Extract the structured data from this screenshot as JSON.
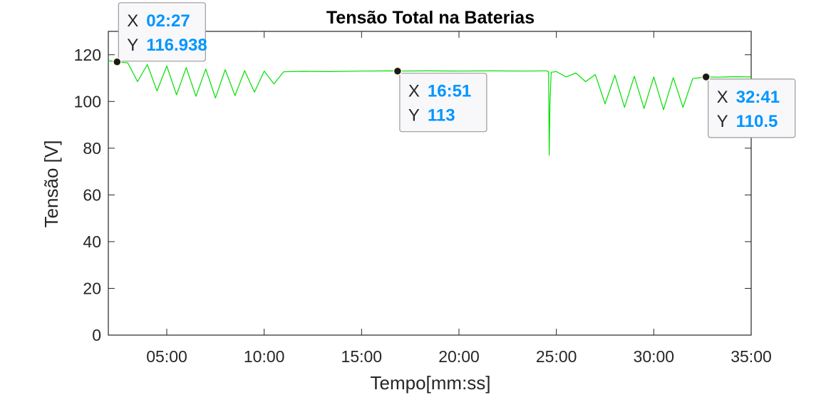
{
  "chart_data": {
    "type": "line",
    "title": "Tensão Total na Baterias",
    "xlabel": "Tempo[mm:ss]",
    "ylabel": "Tensão [V]",
    "xlim_seconds": [
      120,
      2100
    ],
    "ylim": [
      0,
      130
    ],
    "x_ticks": [
      "05:00",
      "10:00",
      "15:00",
      "20:00",
      "25:00",
      "30:00",
      "35:00"
    ],
    "y_ticks": [
      "0",
      "20",
      "40",
      "60",
      "80",
      "100",
      "120"
    ],
    "grid": false,
    "colors": {
      "line": "#00e000",
      "axes": "#262626",
      "tip_value": "#0096ff"
    },
    "series": [
      {
        "x": [
          120,
          147,
          180,
          210,
          240,
          270,
          300,
          330,
          360,
          390,
          420,
          450,
          480,
          510,
          540,
          570,
          600,
          630,
          660,
          720,
          800,
          900,
          1000,
          1011,
          1100,
          1200,
          1300,
          1400,
          1470,
          1476,
          1478,
          1480,
          1484,
          1500,
          1530,
          1560,
          1590,
          1620,
          1650,
          1680,
          1710,
          1740,
          1770,
          1800,
          1830,
          1860,
          1890,
          1920,
          1961,
          2000,
          2050,
          2100
        ],
        "y": [
          117.5,
          116.9,
          116.5,
          108.5,
          115.8,
          104.5,
          115.2,
          102.8,
          114.5,
          102.2,
          113.9,
          101.5,
          113.6,
          102.5,
          113.2,
          104.0,
          113.0,
          107.5,
          112.7,
          112.9,
          112.8,
          113.0,
          113.1,
          113.0,
          113.1,
          113.0,
          113.1,
          113.0,
          113.1,
          112.8,
          77.0,
          99.0,
          112.5,
          112.8,
          110.5,
          112.2,
          108.5,
          111.5,
          99.0,
          111.2,
          97.5,
          110.8,
          97.0,
          110.5,
          96.5,
          110.2,
          97.5,
          109.8,
          110.5,
          110.4,
          110.6,
          110.5
        ]
      }
    ],
    "datatips": [
      {
        "x": 147,
        "y": 116.938,
        "x_text": "02:27",
        "y_text": "116.938"
      },
      {
        "x": 1011,
        "y": 113,
        "x_text": "16:51",
        "y_text": "113"
      },
      {
        "x": 1961,
        "y": 110.5,
        "x_text": "32:41",
        "y_text": "110.5"
      }
    ],
    "tip_labels": {
      "x": "X",
      "y": "Y"
    }
  }
}
